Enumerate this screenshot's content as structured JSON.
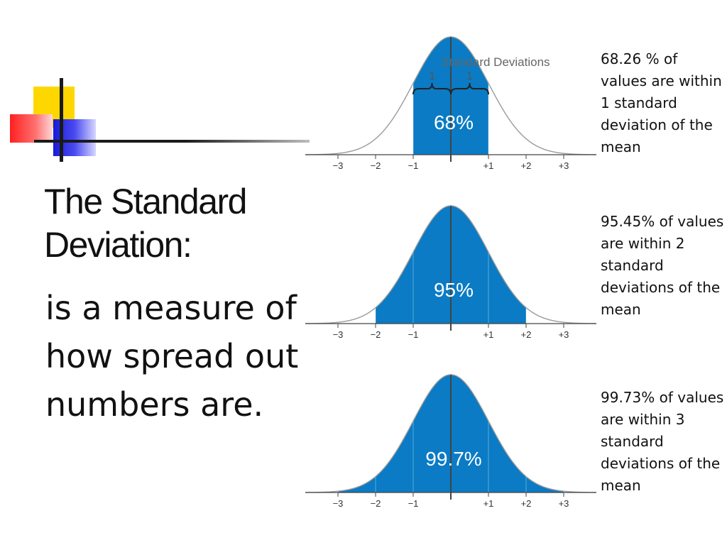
{
  "slide": {
    "title": "The Standard Deviation:",
    "body": "is a measure of how spread out numbers are."
  },
  "axis_ticks": [
    "−3",
    "−2",
    "−1",
    "+1",
    "+2",
    "+3"
  ],
  "panels": [
    {
      "percent_label": "68%",
      "shaded_sd": 1,
      "annotation": {
        "header": "Standard Deviations",
        "brace_labels": [
          "1",
          "1"
        ]
      },
      "note": "68.26 % of values are within 1 standard deviation of the mean"
    },
    {
      "percent_label": "95%",
      "shaded_sd": 2,
      "note": "95.45% of values are within 2 standard deviations of the mean"
    },
    {
      "percent_label": "99.7%",
      "shaded_sd": 3,
      "note": "99.73% of values are within 3 standard deviations of the mean"
    }
  ],
  "colors": {
    "fill": "#0a7bc4",
    "curve": "#9a9a9a",
    "axis": "#444444",
    "deco_yellow": "#ffd700",
    "deco_red": "#ff2020",
    "deco_blue": "#1a1ad8"
  }
}
